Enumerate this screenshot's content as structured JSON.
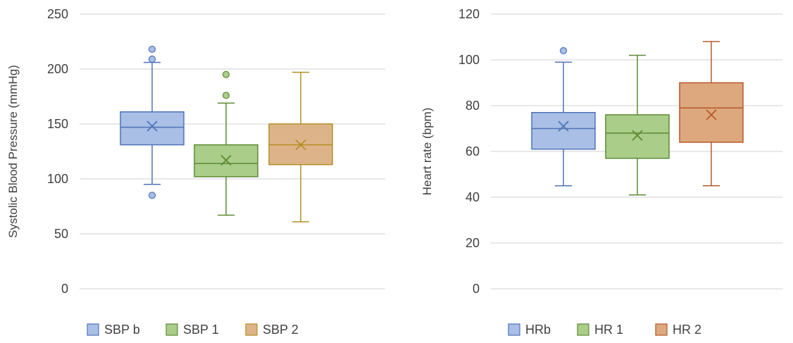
{
  "chart_data": [
    {
      "type": "boxplot",
      "ylabel": "Systolic Blood Pressure (mmHg)",
      "ylim": [
        0,
        250
      ],
      "yticks": [
        0,
        50,
        100,
        150,
        200,
        250
      ],
      "grid": true,
      "legend_position": "bottom",
      "series": [
        {
          "name": "SBP b",
          "min": 95,
          "q1": 131,
          "median": 147,
          "q3": 161,
          "max": 206,
          "mean": 148,
          "outliers": [
            218,
            209,
            85
          ],
          "fill": "#a9bfe6",
          "stroke": "#4f73b8"
        },
        {
          "name": "SBP 1",
          "min": 67,
          "q1": 102,
          "median": 114,
          "q3": 131,
          "max": 169,
          "mean": 117,
          "outliers": [
            195,
            176
          ],
          "fill": "#aacd8a",
          "stroke": "#5c8a33"
        },
        {
          "name": "SBP 2",
          "min": 61,
          "q1": 113,
          "median": 131,
          "q3": 150,
          "max": 197,
          "mean": 131,
          "outliers": [],
          "fill": "#ddb48a",
          "stroke": "#b38f22"
        }
      ]
    },
    {
      "type": "boxplot",
      "ylabel": "Heart rate (bpm)",
      "ylim": [
        0,
        120
      ],
      "yticks": [
        0,
        20,
        40,
        60,
        80,
        100,
        120
      ],
      "grid": true,
      "legend_position": "bottom",
      "series": [
        {
          "name": "HRb",
          "min": 45,
          "q1": 61,
          "median": 70,
          "q3": 77,
          "max": 99,
          "mean": 71,
          "outliers": [
            104
          ],
          "fill": "#a9bfe6",
          "stroke": "#4f73b8"
        },
        {
          "name": "HR 1",
          "min": 41,
          "q1": 57,
          "median": 68,
          "q3": 76,
          "max": 102,
          "mean": 67,
          "outliers": [],
          "fill": "#aacd8a",
          "stroke": "#5c8a33"
        },
        {
          "name": "HR 2",
          "min": 45,
          "q1": 64,
          "median": 79,
          "q3": 90,
          "max": 108,
          "mean": 76,
          "outliers": [],
          "fill": "#dda87e",
          "stroke": "#b8582a"
        }
      ]
    }
  ]
}
